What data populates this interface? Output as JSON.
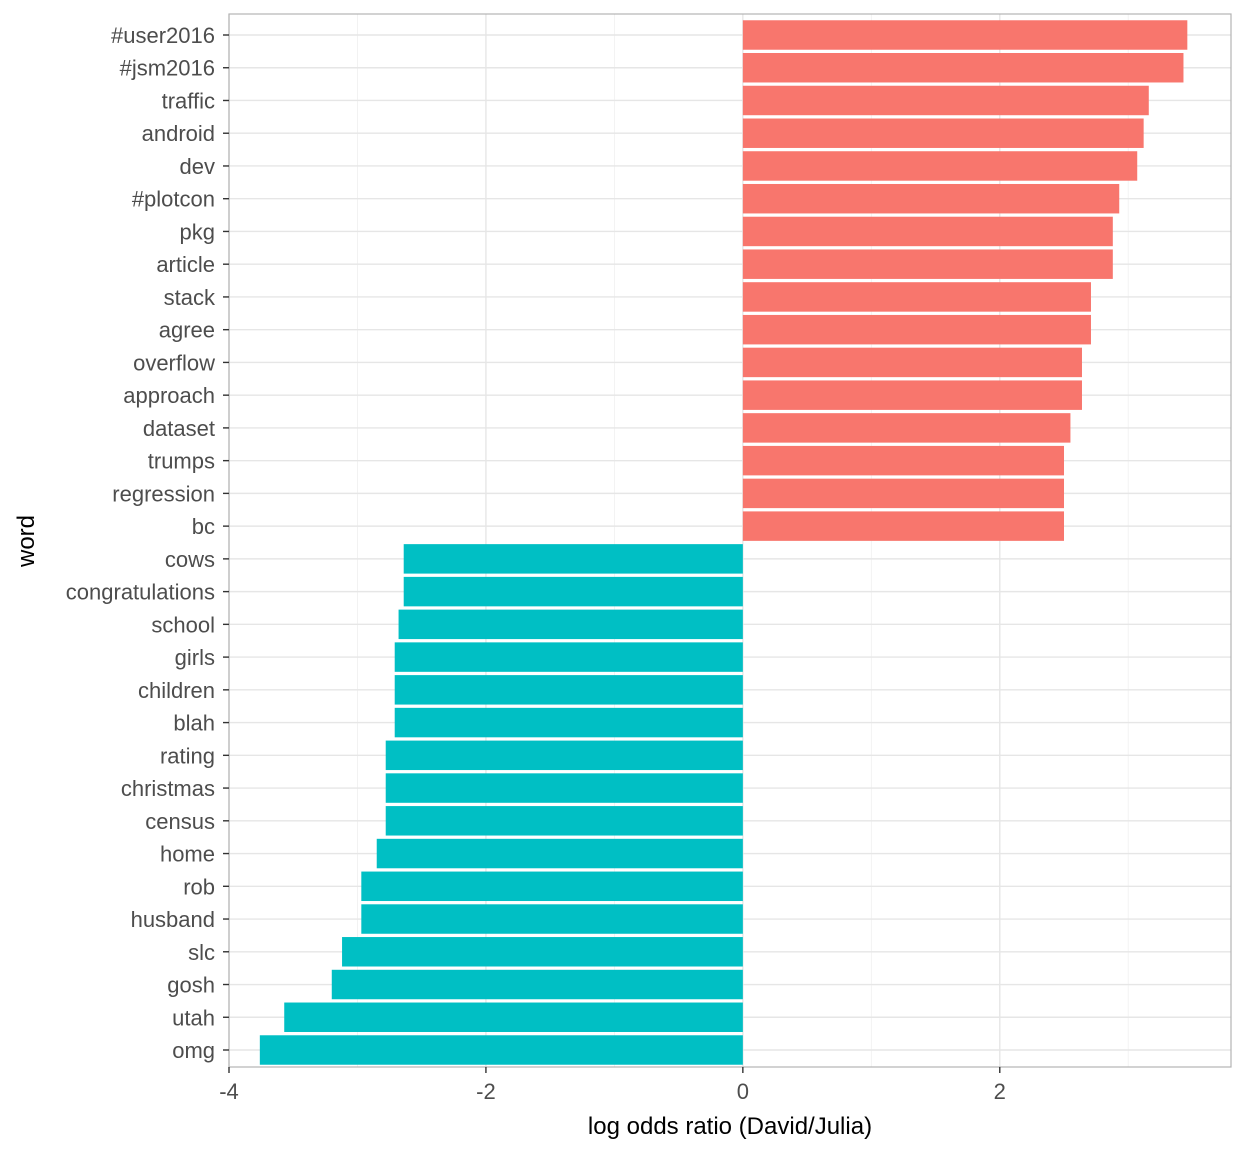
{
  "chart_data": {
    "type": "bar",
    "orientation": "horizontal",
    "xlabel": "log odds ratio (David/Julia)",
    "ylabel": "word",
    "xlim": [
      -4.0,
      3.8
    ],
    "x_ticks": [
      -4,
      -2,
      0,
      2
    ],
    "x_tick_labels": [
      "-4",
      "-2",
      "0",
      "2"
    ],
    "grid": true,
    "legend": "none",
    "colors": {
      "positive": "#F8766D",
      "negative": "#00BFC4"
    },
    "categories": [
      "#user2016",
      "#jsm2016",
      "traffic",
      "android",
      "dev",
      "#plotcon",
      "pkg",
      "article",
      "stack",
      "agree",
      "overflow",
      "approach",
      "dataset",
      "trumps",
      "regression",
      "bc",
      "cows",
      "congratulations",
      "school",
      "girls",
      "children",
      "blah",
      "rating",
      "christmas",
      "census",
      "home",
      "rob",
      "husband",
      "slc",
      "gosh",
      "utah",
      "omg"
    ],
    "values": [
      3.46,
      3.43,
      3.16,
      3.12,
      3.07,
      2.93,
      2.88,
      2.88,
      2.71,
      2.71,
      2.64,
      2.64,
      2.55,
      2.5,
      2.5,
      2.5,
      -2.64,
      -2.64,
      -2.68,
      -2.71,
      -2.71,
      -2.71,
      -2.78,
      -2.78,
      -2.78,
      -2.85,
      -2.97,
      -2.97,
      -3.12,
      -3.2,
      -3.57,
      -3.76
    ]
  }
}
